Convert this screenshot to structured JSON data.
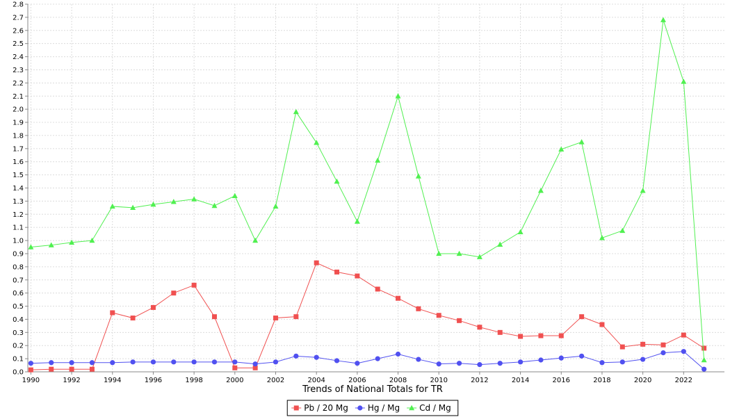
{
  "chart_data": {
    "type": "line",
    "title": "",
    "xlabel": "Trends of National Totals for TR",
    "ylabel": "",
    "x": [
      1990,
      1991,
      1992,
      1993,
      1994,
      1995,
      1996,
      1997,
      1998,
      1999,
      2000,
      2001,
      2002,
      2003,
      2004,
      2005,
      2006,
      2007,
      2008,
      2009,
      2010,
      2011,
      2012,
      2013,
      2014,
      2015,
      2016,
      2017,
      2018,
      2019,
      2020,
      2021,
      2022,
      2023
    ],
    "xlim": [
      1989.85,
      2024.0
    ],
    "ylim": [
      0.0,
      2.8
    ],
    "x_ticks": [
      "1990",
      "1992",
      "1994",
      "1996",
      "1998",
      "2000",
      "2002",
      "2004",
      "2006",
      "2008",
      "2010",
      "2012",
      "2014",
      "2016",
      "2018",
      "2020",
      "2022"
    ],
    "y_ticks": [
      "0.0",
      "0.1",
      "0.2",
      "0.3",
      "0.4",
      "0.5",
      "0.6",
      "0.7",
      "0.8",
      "0.9",
      "1.0",
      "1.1",
      "1.2",
      "1.3",
      "1.4",
      "1.5",
      "1.6",
      "1.7",
      "1.8",
      "1.9",
      "2.0",
      "2.1",
      "2.2",
      "2.3",
      "2.4",
      "2.5",
      "2.6",
      "2.7",
      "2.8"
    ],
    "grid": true,
    "legend_position": "bottom-center",
    "series": [
      {
        "name": "Pb / 20 Mg",
        "color": "#f05050",
        "marker": "square",
        "values": [
          0.015,
          0.02,
          0.02,
          0.02,
          0.45,
          0.41,
          0.49,
          0.6,
          0.66,
          0.42,
          0.03,
          0.03,
          0.41,
          0.42,
          0.83,
          0.76,
          0.73,
          0.63,
          0.56,
          0.48,
          0.43,
          0.39,
          0.34,
          0.3,
          0.27,
          0.275,
          0.275,
          0.42,
          0.36,
          0.19,
          0.21,
          0.205,
          0.28,
          0.18
        ]
      },
      {
        "name": "Hg / Mg",
        "color": "#5050f0",
        "marker": "circle",
        "values": [
          0.065,
          0.07,
          0.07,
          0.07,
          0.07,
          0.075,
          0.075,
          0.075,
          0.075,
          0.075,
          0.075,
          0.06,
          0.075,
          0.12,
          0.11,
          0.085,
          0.065,
          0.1,
          0.135,
          0.095,
          0.06,
          0.065,
          0.055,
          0.065,
          0.075,
          0.09,
          0.105,
          0.12,
          0.07,
          0.075,
          0.095,
          0.145,
          0.155,
          0.02
        ]
      },
      {
        "name": "Cd / Mg",
        "color": "#50f050",
        "marker": "triangle",
        "values": [
          0.95,
          0.965,
          0.985,
          1.0,
          1.26,
          1.25,
          1.275,
          1.295,
          1.315,
          1.265,
          1.34,
          1.0,
          1.26,
          1.98,
          1.745,
          1.45,
          1.145,
          1.61,
          2.1,
          1.49,
          0.9,
          0.9,
          0.875,
          0.97,
          1.065,
          1.38,
          1.695,
          1.75,
          1.02,
          1.075,
          1.38,
          2.68,
          2.21,
          0.09
        ]
      }
    ]
  }
}
